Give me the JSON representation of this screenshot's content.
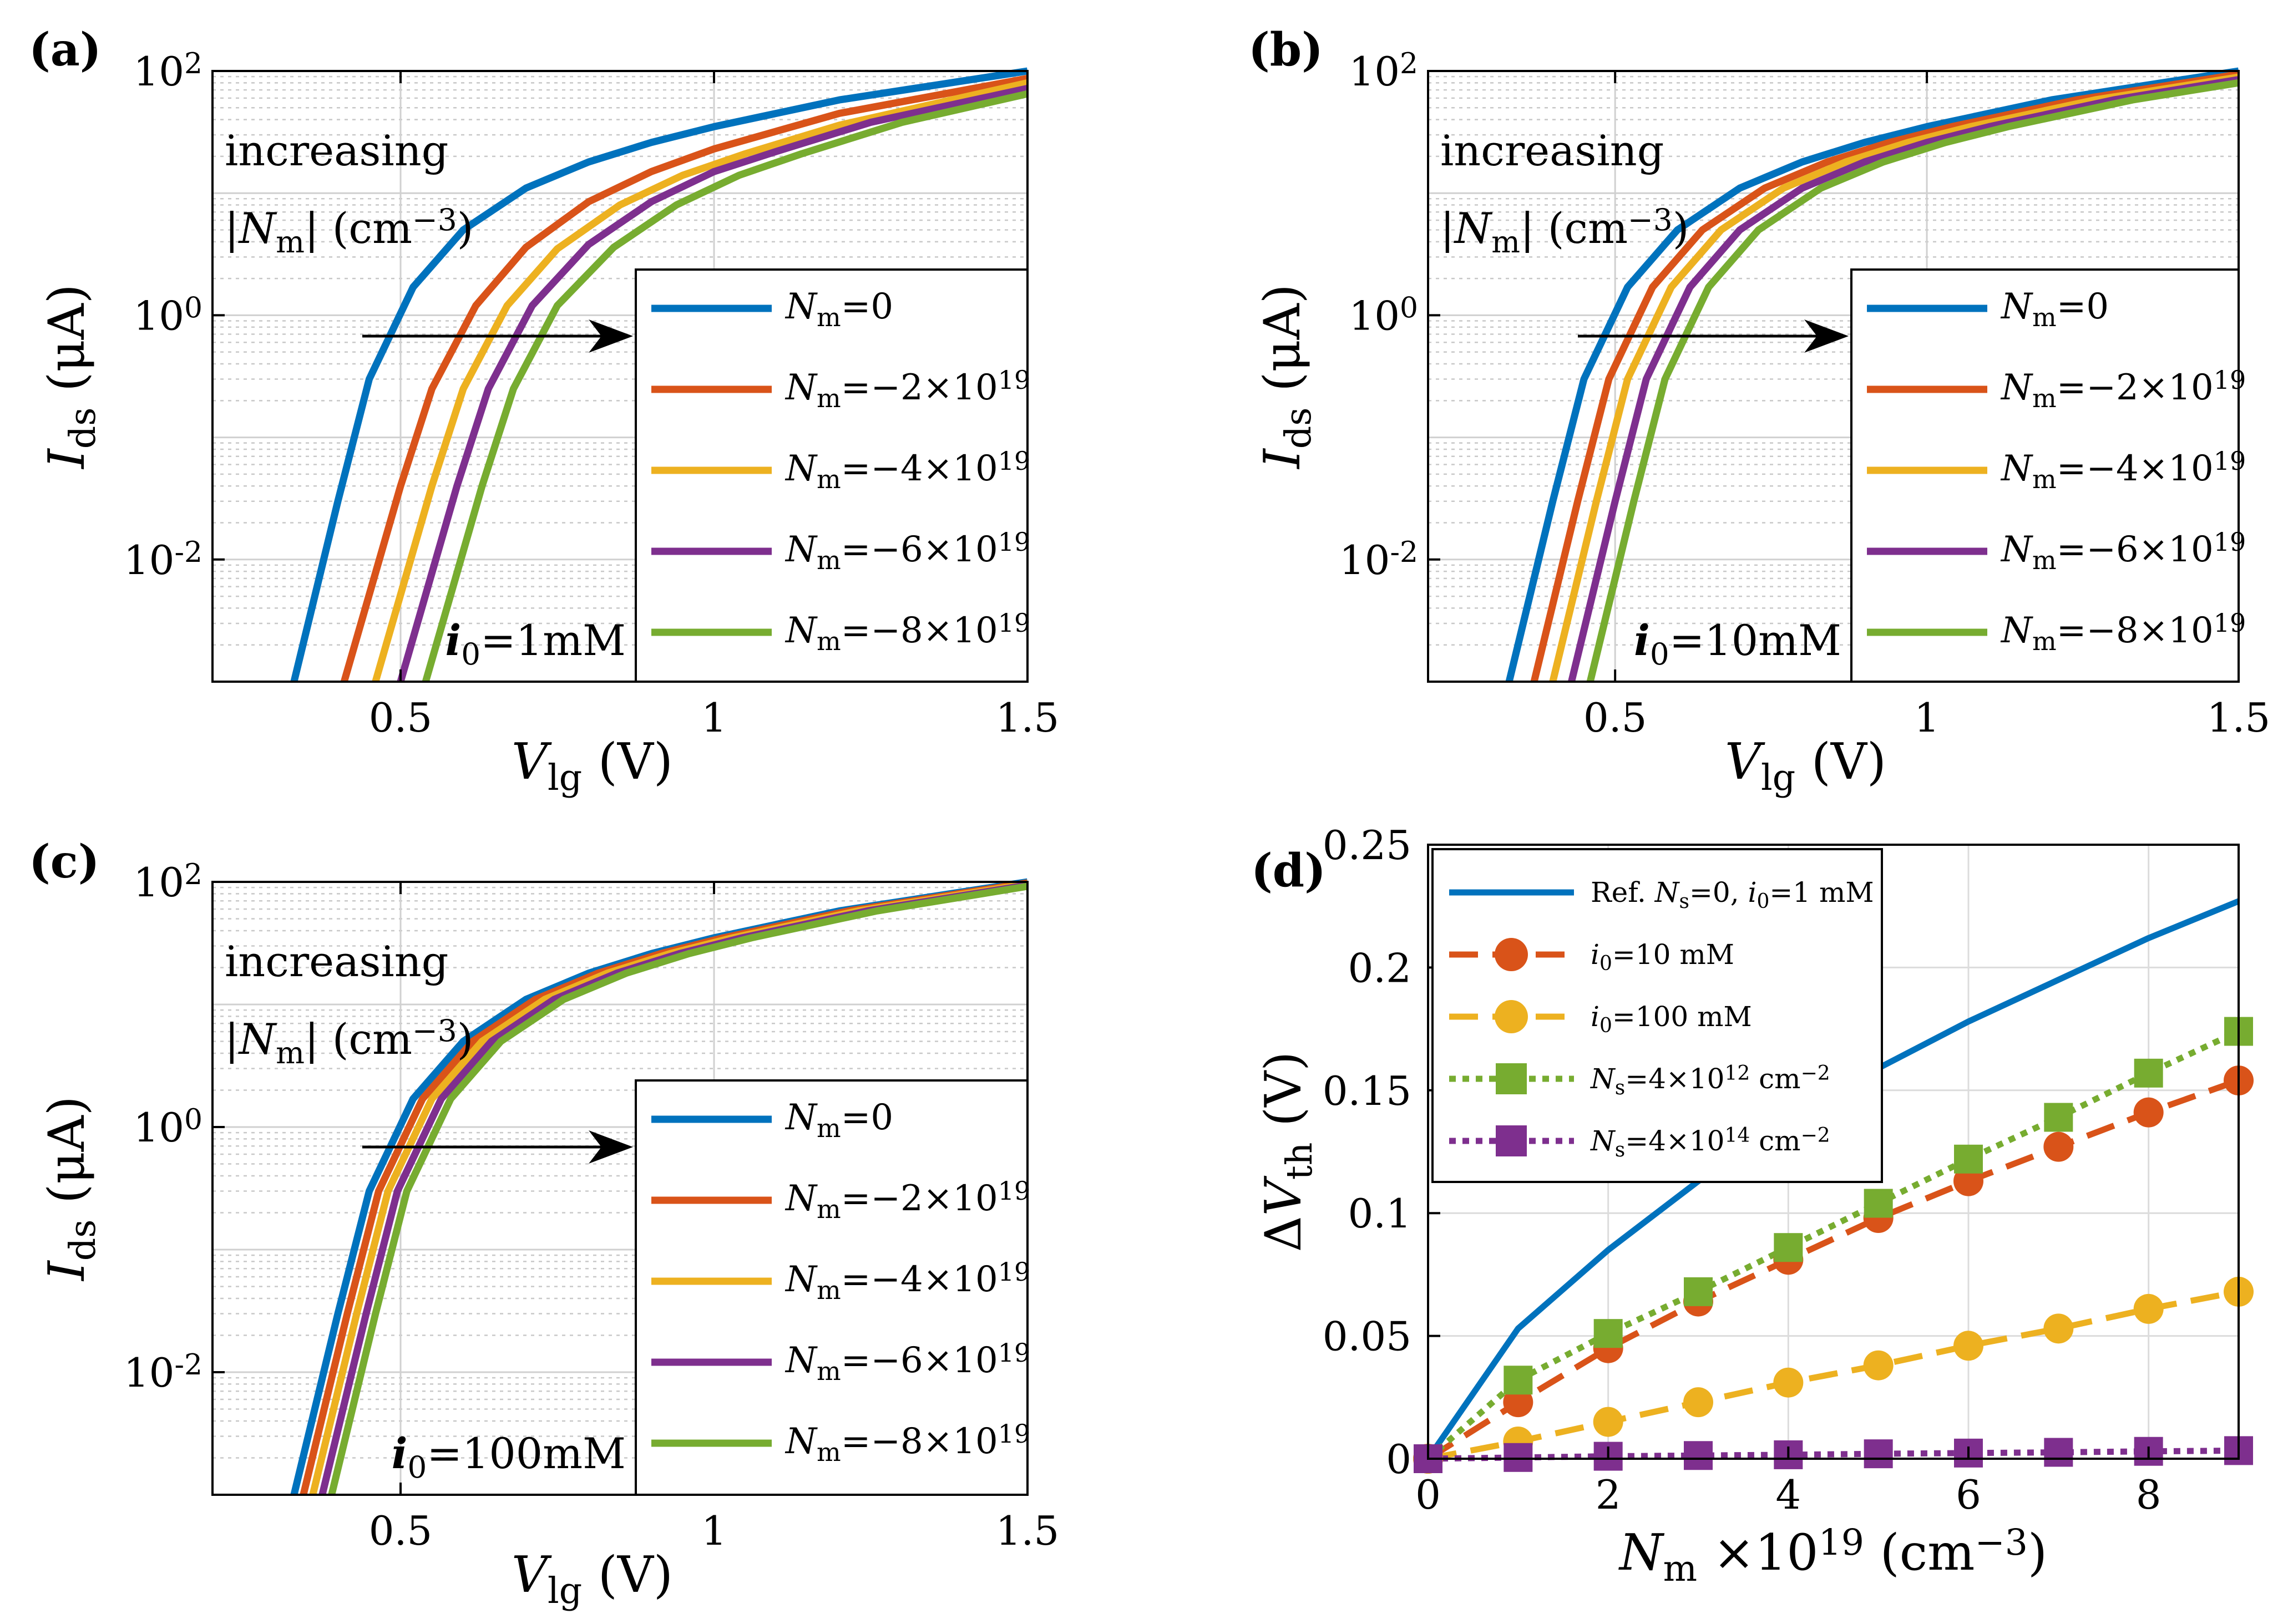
{
  "chart_data": [
    {
      "type": "line",
      "panel_label": "(a)",
      "x_scale": "linear",
      "y_scale": "log",
      "xlim": [
        0.2,
        1.5
      ],
      "ylim": [
        0.001,
        100
      ],
      "xticks": [
        0.5,
        1,
        1.5
      ],
      "xtick_labels": [
        "0.5",
        "1",
        "1.5"
      ],
      "yticks": [
        0.01,
        1,
        100
      ],
      "ytick_labels": [
        {
          "base": "10",
          "exp": "-2"
        },
        {
          "base": "10",
          "exp": "0"
        },
        {
          "base": "10",
          "exp": "2"
        }
      ],
      "xlabel": {
        "var": "V",
        "sub": "lg",
        "unit": " (V)"
      },
      "ylabel": {
        "var": "I",
        "sub": "ds",
        "unit": " (μA)"
      },
      "annotation": {
        "line1": "increasing",
        "line2_pre": "|N",
        "line2_sub": "m",
        "line2_post": "| (cm",
        "line2_sup": "−3",
        "line2_end": ")"
      },
      "condition": {
        "var": "i",
        "sub": "0",
        "text": "=1mM"
      },
      "legend_position": "lower-right",
      "grid": true,
      "series": [
        {
          "name": "Nm=0",
          "label": {
            "var": "N",
            "sub": "m",
            "text": "=0"
          },
          "color": "#0072BD",
          "x": [
            0.33,
            0.4,
            0.45,
            0.52,
            0.6,
            0.7,
            0.8,
            0.9,
            1.0,
            1.2,
            1.5
          ],
          "y": [
            0.001,
            0.03,
            0.3,
            1.7,
            5.0,
            11,
            18,
            26,
            35,
            58,
            100
          ]
        },
        {
          "name": "Nm=-2x10^19",
          "label": {
            "var": "N",
            "sub": "m",
            "text": "=−2×10",
            "sup": "19"
          },
          "color": "#D95319",
          "x": [
            0.41,
            0.5,
            0.55,
            0.62,
            0.7,
            0.8,
            0.9,
            1.0,
            1.2,
            1.5
          ],
          "y": [
            0.001,
            0.04,
            0.25,
            1.2,
            3.6,
            8.5,
            15,
            23,
            45,
            87
          ]
        },
        {
          "name": "Nm=-4x10^19",
          "label": {
            "var": "N",
            "sub": "m",
            "text": "=−4×10",
            "sup": "19"
          },
          "color": "#EDB120",
          "x": [
            0.46,
            0.55,
            0.6,
            0.67,
            0.75,
            0.85,
            0.95,
            1.05,
            1.2,
            1.5
          ],
          "y": [
            0.001,
            0.04,
            0.25,
            1.2,
            3.5,
            8.0,
            14,
            21,
            36,
            80
          ]
        },
        {
          "name": "Nm=-6x10^19",
          "label": {
            "var": "N",
            "sub": "m",
            "text": "=−6×10",
            "sup": "19"
          },
          "color": "#7E2F8E",
          "x": [
            0.5,
            0.59,
            0.64,
            0.71,
            0.8,
            0.9,
            1.0,
            1.1,
            1.25,
            1.5
          ],
          "y": [
            0.001,
            0.04,
            0.25,
            1.2,
            3.8,
            8.5,
            15,
            22,
            38,
            72
          ]
        },
        {
          "name": "Nm=-8x10^19",
          "label": {
            "var": "N",
            "sub": "m",
            "text": "=−8×10",
            "sup": "19"
          },
          "color": "#77AC30",
          "x": [
            0.54,
            0.63,
            0.68,
            0.75,
            0.84,
            0.94,
            1.04,
            1.14,
            1.3,
            1.5
          ],
          "y": [
            0.001,
            0.04,
            0.25,
            1.2,
            3.6,
            8.0,
            14,
            21,
            38,
            65
          ]
        }
      ]
    },
    {
      "type": "line",
      "panel_label": "(b)",
      "x_scale": "linear",
      "y_scale": "log",
      "xlim": [
        0.2,
        1.5
      ],
      "ylim": [
        0.001,
        100
      ],
      "xticks": [
        0.5,
        1,
        1.5
      ],
      "xtick_labels": [
        "0.5",
        "1",
        "1.5"
      ],
      "yticks": [
        0.01,
        1,
        100
      ],
      "ytick_labels": [
        {
          "base": "10",
          "exp": "-2"
        },
        {
          "base": "10",
          "exp": "0"
        },
        {
          "base": "10",
          "exp": "2"
        }
      ],
      "xlabel": {
        "var": "V",
        "sub": "lg",
        "unit": " (V)"
      },
      "ylabel": {
        "var": "I",
        "sub": "ds",
        "unit": " (μA)"
      },
      "annotation": {
        "line1": "increasing",
        "line2_pre": "|N",
        "line2_sub": "m",
        "line2_post": "| (cm",
        "line2_sup": "−3",
        "line2_end": ")"
      },
      "condition": {
        "var": "i",
        "sub": "0",
        "text": "=10mM"
      },
      "legend_position": "lower-right",
      "grid": true,
      "series": [
        {
          "name": "Nm=0",
          "label": {
            "var": "N",
            "sub": "m",
            "text": "=0"
          },
          "color": "#0072BD",
          "x": [
            0.33,
            0.4,
            0.45,
            0.52,
            0.6,
            0.7,
            0.8,
            0.9,
            1.0,
            1.2,
            1.5
          ],
          "y": [
            0.001,
            0.03,
            0.3,
            1.7,
            5.0,
            11,
            18,
            26,
            35,
            58,
            100
          ]
        },
        {
          "name": "Nm=-2x10^19",
          "label": {
            "var": "N",
            "sub": "m",
            "text": "=−2×10",
            "sup": "19"
          },
          "color": "#D95319",
          "x": [
            0.37,
            0.44,
            0.49,
            0.56,
            0.64,
            0.74,
            0.84,
            0.94,
            1.04,
            1.24,
            1.5
          ],
          "y": [
            0.001,
            0.03,
            0.3,
            1.7,
            5.0,
            11,
            18,
            26,
            35,
            58,
            94
          ]
        },
        {
          "name": "Nm=-4x10^19",
          "label": {
            "var": "N",
            "sub": "m",
            "text": "=−4×10",
            "sup": "19"
          },
          "color": "#EDB120",
          "x": [
            0.4,
            0.47,
            0.52,
            0.59,
            0.67,
            0.77,
            0.87,
            0.97,
            1.07,
            1.27,
            1.5
          ],
          "y": [
            0.001,
            0.03,
            0.3,
            1.7,
            5.0,
            11,
            18,
            26,
            35,
            58,
            89
          ]
        },
        {
          "name": "Nm=-6x10^19",
          "label": {
            "var": "N",
            "sub": "m",
            "text": "=−6×10",
            "sup": "19"
          },
          "color": "#7E2F8E",
          "x": [
            0.43,
            0.5,
            0.55,
            0.62,
            0.7,
            0.8,
            0.9,
            1.0,
            1.1,
            1.3,
            1.5
          ],
          "y": [
            0.001,
            0.03,
            0.3,
            1.7,
            5.0,
            11,
            18,
            26,
            35,
            58,
            85
          ]
        },
        {
          "name": "Nm=-8x10^19",
          "label": {
            "var": "N",
            "sub": "m",
            "text": "=−8×10",
            "sup": "19"
          },
          "color": "#77AC30",
          "x": [
            0.46,
            0.53,
            0.58,
            0.65,
            0.73,
            0.83,
            0.93,
            1.03,
            1.13,
            1.33,
            1.5
          ],
          "y": [
            0.001,
            0.03,
            0.3,
            1.7,
            5.0,
            11,
            18,
            26,
            35,
            58,
            80
          ]
        }
      ]
    },
    {
      "type": "line",
      "panel_label": "(c)",
      "x_scale": "linear",
      "y_scale": "log",
      "xlim": [
        0.2,
        1.5
      ],
      "ylim": [
        0.001,
        100
      ],
      "xticks": [
        0.5,
        1,
        1.5
      ],
      "xtick_labels": [
        "0.5",
        "1",
        "1.5"
      ],
      "yticks": [
        0.01,
        1,
        100
      ],
      "ytick_labels": [
        {
          "base": "10",
          "exp": "-2"
        },
        {
          "base": "10",
          "exp": "0"
        },
        {
          "base": "10",
          "exp": "2"
        }
      ],
      "xlabel": {
        "var": "V",
        "sub": "lg",
        "unit": " (V)"
      },
      "ylabel": {
        "var": "I",
        "sub": "ds",
        "unit": " (μA)"
      },
      "annotation": {
        "line1": "increasing",
        "line2_pre": "|N",
        "line2_sub": "m",
        "line2_post": "| (cm",
        "line2_sup": "−3",
        "line2_end": ")"
      },
      "condition": {
        "var": "i",
        "sub": "0",
        "text": "=100mM"
      },
      "legend_position": "lower-right",
      "grid": true,
      "series": [
        {
          "name": "Nm=0",
          "label": {
            "var": "N",
            "sub": "m",
            "text": "=0"
          },
          "color": "#0072BD",
          "x": [
            0.33,
            0.4,
            0.45,
            0.52,
            0.6,
            0.7,
            0.8,
            0.9,
            1.0,
            1.2,
            1.5
          ],
          "y": [
            0.001,
            0.03,
            0.3,
            1.7,
            5.0,
            11,
            18,
            26,
            35,
            58,
            100
          ]
        },
        {
          "name": "Nm=-2x10^19",
          "label": {
            "var": "N",
            "sub": "m",
            "text": "=−2×10",
            "sup": "19"
          },
          "color": "#D95319",
          "x": [
            0.345,
            0.415,
            0.465,
            0.535,
            0.615,
            0.715,
            0.815,
            0.915,
            1.015,
            1.215,
            1.5
          ],
          "y": [
            0.001,
            0.03,
            0.3,
            1.7,
            5.0,
            11,
            18,
            26,
            35,
            58,
            98
          ]
        },
        {
          "name": "Nm=-4x10^19",
          "label": {
            "var": "N",
            "sub": "m",
            "text": "=−4×10",
            "sup": "19"
          },
          "color": "#EDB120",
          "x": [
            0.36,
            0.43,
            0.48,
            0.55,
            0.63,
            0.73,
            0.83,
            0.93,
            1.03,
            1.23,
            1.5
          ],
          "y": [
            0.001,
            0.03,
            0.3,
            1.7,
            5.0,
            11,
            18,
            26,
            35,
            58,
            96
          ]
        },
        {
          "name": "Nm=-6x10^19",
          "label": {
            "var": "N",
            "sub": "m",
            "text": "=−6×10",
            "sup": "19"
          },
          "color": "#7E2F8E",
          "x": [
            0.375,
            0.445,
            0.495,
            0.565,
            0.645,
            0.745,
            0.845,
            0.945,
            1.045,
            1.245,
            1.5
          ],
          "y": [
            0.001,
            0.03,
            0.3,
            1.7,
            5.0,
            11,
            18,
            26,
            35,
            58,
            94
          ]
        },
        {
          "name": "Nm=-8x10^19",
          "label": {
            "var": "N",
            "sub": "m",
            "text": "=−8×10",
            "sup": "19"
          },
          "color": "#77AC30",
          "x": [
            0.39,
            0.46,
            0.51,
            0.58,
            0.66,
            0.76,
            0.86,
            0.96,
            1.06,
            1.26,
            1.5
          ],
          "y": [
            0.001,
            0.03,
            0.3,
            1.7,
            5.0,
            11,
            18,
            26,
            35,
            58,
            92
          ]
        }
      ]
    },
    {
      "type": "line",
      "panel_label": "(d)",
      "x_scale": "linear",
      "y_scale": "linear",
      "xlim": [
        0,
        9
      ],
      "ylim": [
        0,
        0.25
      ],
      "xticks": [
        0,
        2,
        4,
        6,
        8
      ],
      "xtick_labels": [
        "0",
        "2",
        "4",
        "6",
        "8"
      ],
      "yticks": [
        0,
        0.05,
        0.1,
        0.15,
        0.2,
        0.25
      ],
      "ytick_labels": [
        "0",
        "0.05",
        "0.1",
        "0.15",
        "0.2",
        "0.25"
      ],
      "xlabel": {
        "var": "N",
        "sub": "m",
        "unit": " ×10",
        "sup": "19",
        "end": " (cm",
        "sup2": "−3",
        "end2": ")"
      },
      "ylabel": {
        "pre": "Δ",
        "var": "V",
        "sub": "th",
        "unit": " (V)"
      },
      "legend_position": "top-left",
      "grid": true,
      "series": [
        {
          "name": "Ref. Ns=0, i0=1 mM",
          "label": {
            "pre": "Ref. ",
            "var": "N",
            "sub": "s",
            "text": "=0, ",
            "var2": "i",
            "sub2": "0",
            "text2": "=1 mM"
          },
          "color": "#0072BD",
          "style": "solid",
          "marker": "none",
          "x": [
            0,
            1,
            2,
            3,
            4,
            5,
            6,
            7,
            8,
            9
          ],
          "y": [
            0,
            0.053,
            0.085,
            0.113,
            0.138,
            0.159,
            0.178,
            0.195,
            0.212,
            0.227
          ]
        },
        {
          "name": "i0=10 mM",
          "label": {
            "var": "i",
            "sub": "0",
            "text": "=10 mM"
          },
          "color": "#D95319",
          "style": "dashed",
          "marker": "circle",
          "x": [
            0,
            1,
            2,
            3,
            4,
            5,
            6,
            7,
            8,
            9
          ],
          "y": [
            0,
            0.023,
            0.045,
            0.064,
            0.081,
            0.098,
            0.113,
            0.127,
            0.141,
            0.154
          ]
        },
        {
          "name": "i0=100 mM",
          "label": {
            "var": "i",
            "sub": "0",
            "text": "=100 mM"
          },
          "color": "#EDB120",
          "style": "dashed",
          "marker": "circle",
          "x": [
            0,
            1,
            2,
            3,
            4,
            5,
            6,
            7,
            8,
            9
          ],
          "y": [
            0,
            0.007,
            0.015,
            0.023,
            0.031,
            0.038,
            0.046,
            0.053,
            0.061,
            0.068
          ]
        },
        {
          "name": "Ns=4x10^12 cm^-2",
          "label": {
            "var": "N",
            "sub": "s",
            "text": "=4×10",
            "sup": "12",
            "text2": " cm",
            "sup2": "−2"
          },
          "color": "#77AC30",
          "style": "dotted",
          "marker": "square",
          "x": [
            0,
            1,
            2,
            3,
            4,
            5,
            6,
            7,
            8,
            9
          ],
          "y": [
            0,
            0.032,
            0.051,
            0.068,
            0.086,
            0.104,
            0.122,
            0.139,
            0.157,
            0.174
          ]
        },
        {
          "name": "Ns=4x10^14 cm^-2",
          "label": {
            "var": "N",
            "sub": "s",
            "text": "=4×10",
            "sup": "14",
            "text2": " cm",
            "sup2": "−2"
          },
          "color": "#7E2F8E",
          "style": "dotted",
          "marker": "square",
          "x": [
            0,
            1,
            2,
            3,
            4,
            5,
            6,
            7,
            8,
            9
          ],
          "y": [
            0,
            0.0005,
            0.001,
            0.0013,
            0.0016,
            0.002,
            0.0023,
            0.0026,
            0.003,
            0.0033
          ]
        }
      ]
    }
  ]
}
